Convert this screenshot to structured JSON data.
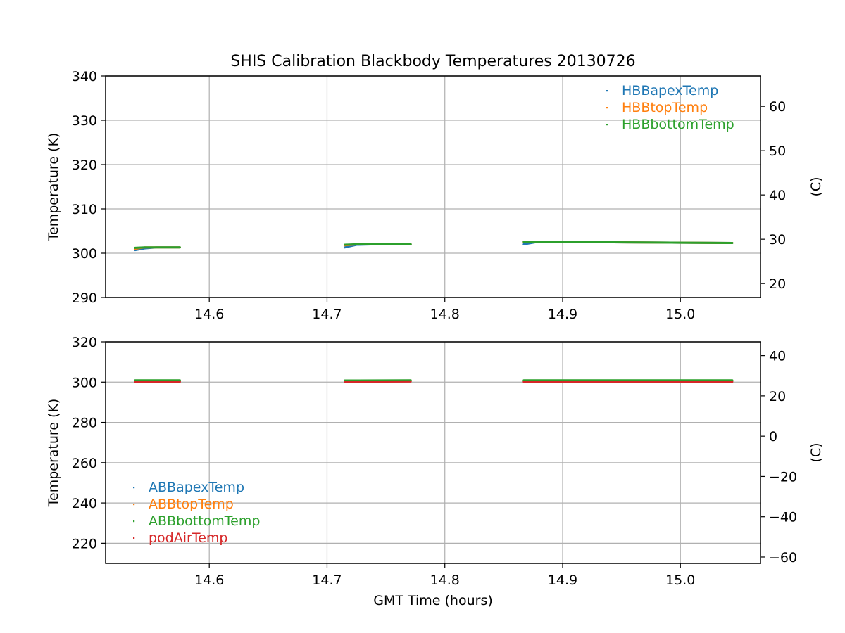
{
  "chart_data": {
    "title": "SHIS Calibration Blackbody Temperatures 20130726",
    "xlabel": "GMT Time (hours)",
    "panels": [
      {
        "type": "scatter",
        "ylabel": "Temperature (K)",
        "ylabel_right": "(C)",
        "xlim": [
          14.512,
          15.068
        ],
        "ylim": [
          290,
          340
        ],
        "ylim_right_c": [
          16.85,
          66.85
        ],
        "xticks": [
          14.6,
          14.7,
          14.8,
          14.9,
          15.0
        ],
        "xtick_labels": [
          "14.6",
          "14.7",
          "14.8",
          "14.9",
          "15.0"
        ],
        "yticks": [
          290,
          300,
          310,
          320,
          330,
          340
        ],
        "ytick_labels": [
          "290",
          "300",
          "310",
          "320",
          "330",
          "340"
        ],
        "yticks_right": [
          20,
          30,
          40,
          50,
          60
        ],
        "ytick_right_labels": [
          "20",
          "30",
          "40",
          "50",
          "60"
        ],
        "grid": true,
        "legend_position": "top-right",
        "series": [
          {
            "name": "HBBapexTemp",
            "color": "#1f77b4",
            "segments": [
              [
                [
                  14.537,
                  300.7
                ],
                [
                  14.545,
                  301.1
                ],
                [
                  14.555,
                  301.3
                ],
                [
                  14.575,
                  301.3
                ]
              ],
              [
                [
                  14.715,
                  301.3
                ],
                [
                  14.725,
                  301.9
                ],
                [
                  14.74,
                  302.0
                ],
                [
                  14.771,
                  302.0
                ]
              ],
              [
                [
                  14.867,
                  302.0
                ],
                [
                  14.88,
                  302.6
                ],
                [
                  14.92,
                  302.5
                ],
                [
                  15.044,
                  302.3
                ]
              ]
            ]
          },
          {
            "name": "HBBtopTemp",
            "color": "#ff7f0e",
            "segments": [
              [
                [
                  14.537,
                  301.0
                ],
                [
                  14.545,
                  301.3
                ],
                [
                  14.575,
                  301.3
                ]
              ],
              [
                [
                  14.715,
                  301.8
                ],
                [
                  14.725,
                  302.0
                ],
                [
                  14.771,
                  302.0
                ]
              ],
              [
                [
                  14.867,
                  302.5
                ],
                [
                  14.88,
                  302.6
                ],
                [
                  14.92,
                  302.5
                ],
                [
                  15.044,
                  302.3
                ]
              ]
            ]
          },
          {
            "name": "HBBbottomTemp",
            "color": "#2ca02c",
            "segments": [
              [
                [
                  14.537,
                  301.2
                ],
                [
                  14.545,
                  301.3
                ],
                [
                  14.575,
                  301.3
                ]
              ],
              [
                [
                  14.715,
                  301.9
                ],
                [
                  14.725,
                  302.0
                ],
                [
                  14.771,
                  302.0
                ]
              ],
              [
                [
                  14.867,
                  302.6
                ],
                [
                  14.88,
                  302.6
                ],
                [
                  14.92,
                  302.5
                ],
                [
                  15.044,
                  302.3
                ]
              ]
            ]
          }
        ]
      },
      {
        "type": "scatter",
        "ylabel": "Temperature (K)",
        "ylabel_right": "(C)",
        "xlim": [
          14.512,
          15.068
        ],
        "ylim": [
          210,
          320
        ],
        "ylim_right_c": [
          -63.15,
          46.85
        ],
        "xticks": [
          14.6,
          14.7,
          14.8,
          14.9,
          15.0
        ],
        "xtick_labels": [
          "14.6",
          "14.7",
          "14.8",
          "14.9",
          "15.0"
        ],
        "yticks": [
          220,
          240,
          260,
          280,
          300,
          320
        ],
        "ytick_labels": [
          "220",
          "240",
          "260",
          "280",
          "300",
          "320"
        ],
        "yticks_right": [
          -60,
          -40,
          -20,
          0,
          20,
          40
        ],
        "ytick_right_labels": [
          "−60",
          "−40",
          "−20",
          "0",
          "20",
          "40"
        ],
        "grid": true,
        "legend_position": "lower-left",
        "series": [
          {
            "name": "ABBapexTemp",
            "color": "#1f77b4",
            "segments": [
              [
                [
                  14.537,
                  300.6
                ],
                [
                  14.575,
                  300.6
                ]
              ],
              [
                [
                  14.715,
                  300.6
                ],
                [
                  14.771,
                  300.7
                ]
              ],
              [
                [
                  14.867,
                  300.6
                ],
                [
                  15.044,
                  300.6
                ]
              ]
            ]
          },
          {
            "name": "ABBtopTemp",
            "color": "#ff7f0e",
            "segments": [
              [
                [
                  14.537,
                  300.7
                ],
                [
                  14.575,
                  300.7
                ]
              ],
              [
                [
                  14.715,
                  300.7
                ],
                [
                  14.771,
                  300.8
                ]
              ],
              [
                [
                  14.867,
                  300.7
                ],
                [
                  15.044,
                  300.7
                ]
              ]
            ]
          },
          {
            "name": "ABBbottomTemp",
            "color": "#2ca02c",
            "segments": [
              [
                [
                  14.537,
                  300.9
                ],
                [
                  14.575,
                  300.9
                ]
              ],
              [
                [
                  14.715,
                  300.8
                ],
                [
                  14.771,
                  300.9
                ]
              ],
              [
                [
                  14.867,
                  300.9
                ],
                [
                  15.044,
                  300.9
                ]
              ]
            ]
          },
          {
            "name": "podAirTemp",
            "color": "#d62728",
            "segments": [
              [
                [
                  14.537,
                  300.2
                ],
                [
                  14.575,
                  300.2
                ]
              ],
              [
                [
                  14.715,
                  300.2
                ],
                [
                  14.771,
                  300.3
                ]
              ],
              [
                [
                  14.867,
                  300.2
                ],
                [
                  15.044,
                  300.2
                ]
              ]
            ]
          }
        ]
      }
    ]
  }
}
